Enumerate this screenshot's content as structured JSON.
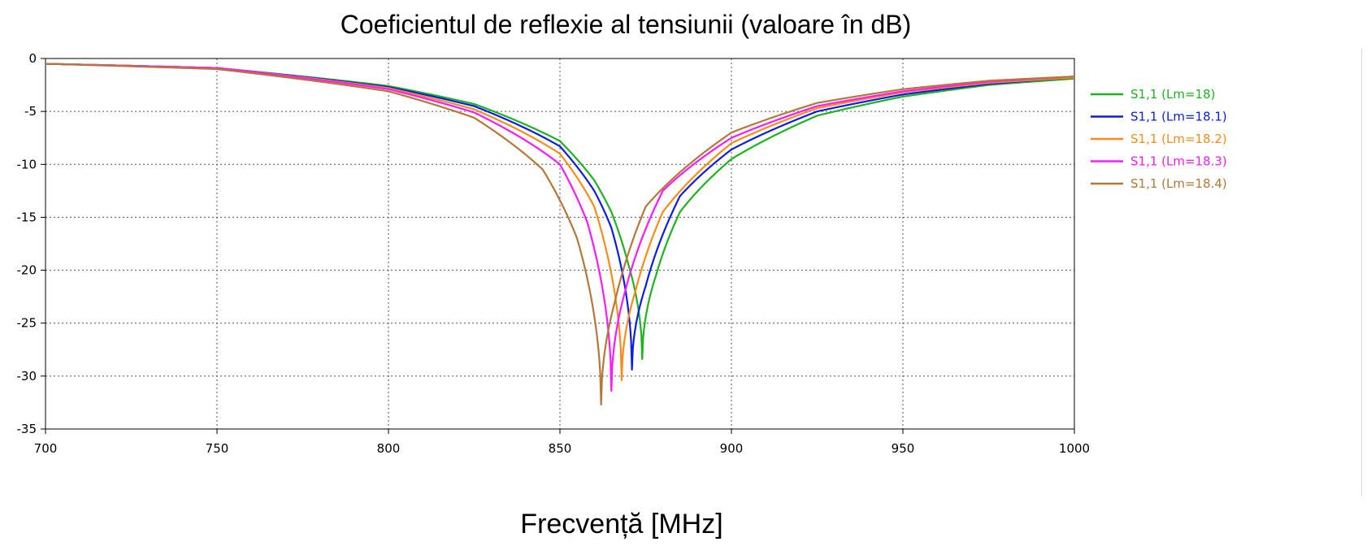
{
  "chart_data": {
    "type": "line",
    "title": "Coeficientul de reflexie al tensiunii (valoare în dB)",
    "xlabel": "Frecvență [MHz]",
    "ylabel": "",
    "xlim": [
      700,
      1000
    ],
    "ylim": [
      -35,
      0
    ],
    "x_ticks": [
      "700",
      "750",
      "800",
      "850",
      "900",
      "950",
      "1000"
    ],
    "y_ticks": [
      "0",
      "-5",
      "-10",
      "-15",
      "-20",
      "-25",
      "-30",
      "-35"
    ],
    "grid": true,
    "legend_position": "right",
    "series": [
      {
        "name": "S1,1 (Lm=18)",
        "color": "#1fb31f",
        "f0": 874.0,
        "min": -28.4,
        "points": [
          [
            700,
            -0.5
          ],
          [
            750,
            -0.9
          ],
          [
            800,
            -2.6
          ],
          [
            825,
            -4.3
          ],
          [
            850,
            -7.8
          ],
          [
            860,
            -11.5
          ],
          [
            865,
            -14.5
          ],
          [
            870,
            -19.5
          ],
          [
            874,
            -28.4
          ],
          [
            878,
            -20.5
          ],
          [
            885,
            -14.5
          ],
          [
            900,
            -9.5
          ],
          [
            925,
            -5.4
          ],
          [
            950,
            -3.6
          ],
          [
            975,
            -2.5
          ],
          [
            1000,
            -1.9
          ]
        ]
      },
      {
        "name": "S1,1 (Lm=18.1)",
        "color": "#0a1ee6",
        "f0": 871.0,
        "min": -29.4,
        "points": [
          [
            700,
            -0.5
          ],
          [
            750,
            -0.9
          ],
          [
            800,
            -2.7
          ],
          [
            825,
            -4.5
          ],
          [
            850,
            -8.3
          ],
          [
            860,
            -12.5
          ],
          [
            865,
            -16.0
          ],
          [
            871,
            -29.4
          ],
          [
            875,
            -21.5
          ],
          [
            885,
            -13.0
          ],
          [
            900,
            -8.6
          ],
          [
            925,
            -5.0
          ],
          [
            950,
            -3.4
          ],
          [
            975,
            -2.4
          ],
          [
            1000,
            -1.8
          ]
        ]
      },
      {
        "name": "S1,1 (Lm=18.2)",
        "color": "#ff8c1a",
        "f0": 868.0,
        "min": -30.4,
        "points": [
          [
            700,
            -0.5
          ],
          [
            750,
            -0.9
          ],
          [
            800,
            -2.8
          ],
          [
            825,
            -4.8
          ],
          [
            850,
            -9.0
          ],
          [
            860,
            -14.0
          ],
          [
            868,
            -30.4
          ],
          [
            872,
            -22.0
          ],
          [
            880,
            -14.5
          ],
          [
            900,
            -8.0
          ],
          [
            925,
            -4.7
          ],
          [
            950,
            -3.2
          ],
          [
            975,
            -2.3
          ],
          [
            1000,
            -1.8
          ]
        ]
      },
      {
        "name": "S1,1 (Lm=18.3)",
        "color": "#ff1aff",
        "f0": 865.0,
        "min": -31.4,
        "points": [
          [
            700,
            -0.5
          ],
          [
            750,
            -0.9
          ],
          [
            800,
            -2.9
          ],
          [
            825,
            -5.1
          ],
          [
            850,
            -10.0
          ],
          [
            858,
            -15.5
          ],
          [
            865,
            -31.4
          ],
          [
            869,
            -22.0
          ],
          [
            880,
            -12.5
          ],
          [
            900,
            -7.5
          ],
          [
            925,
            -4.5
          ],
          [
            950,
            -3.1
          ],
          [
            975,
            -2.2
          ],
          [
            1000,
            -1.7
          ]
        ]
      },
      {
        "name": "S1,1 (Lm=18.4)",
        "color": "#b5773a",
        "f0": 862.0,
        "min": -32.7,
        "points": [
          [
            700,
            -0.5
          ],
          [
            750,
            -1.0
          ],
          [
            800,
            -3.1
          ],
          [
            825,
            -5.6
          ],
          [
            845,
            -10.5
          ],
          [
            855,
            -17.0
          ],
          [
            862,
            -32.7
          ],
          [
            866,
            -23.0
          ],
          [
            875,
            -14.0
          ],
          [
            900,
            -7.0
          ],
          [
            925,
            -4.2
          ],
          [
            950,
            -2.9
          ],
          [
            975,
            -2.1
          ],
          [
            1000,
            -1.7
          ]
        ]
      }
    ]
  }
}
